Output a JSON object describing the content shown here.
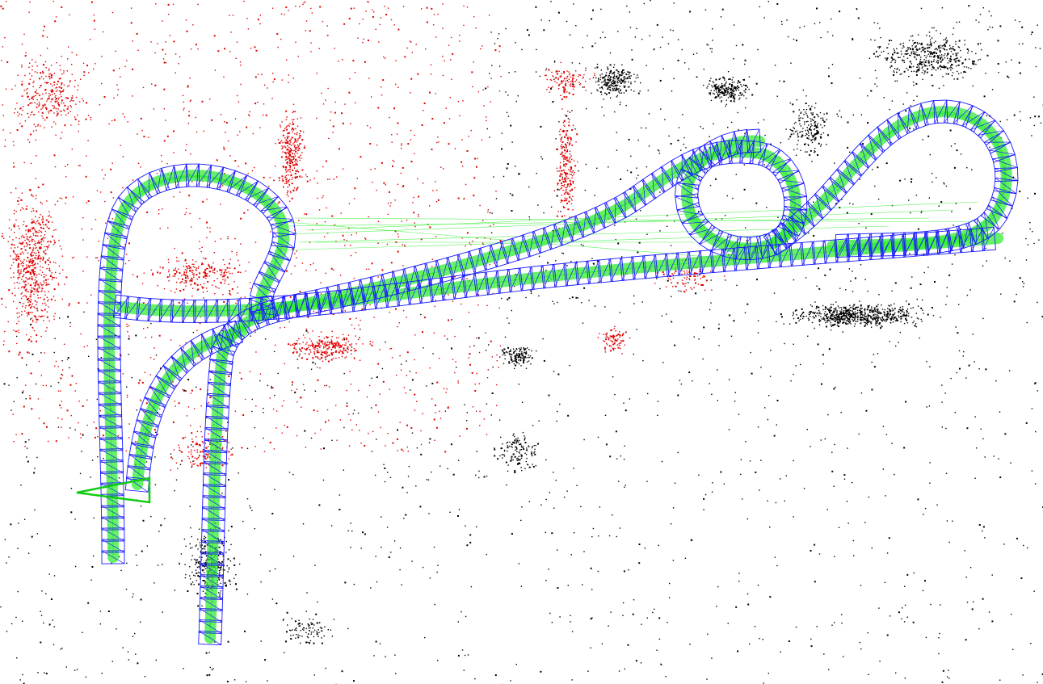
{
  "viewer": {
    "background_color": "#ffffff",
    "point_cloud": {
      "colors": {
        "map_points": "#000000",
        "local_map_points": "#e00000"
      }
    },
    "trajectory": {
      "colors": {
        "keyframes": "#1a1aff",
        "covisibility_graph": "#33ee33",
        "current_camera": "#11cc11"
      }
    }
  }
}
